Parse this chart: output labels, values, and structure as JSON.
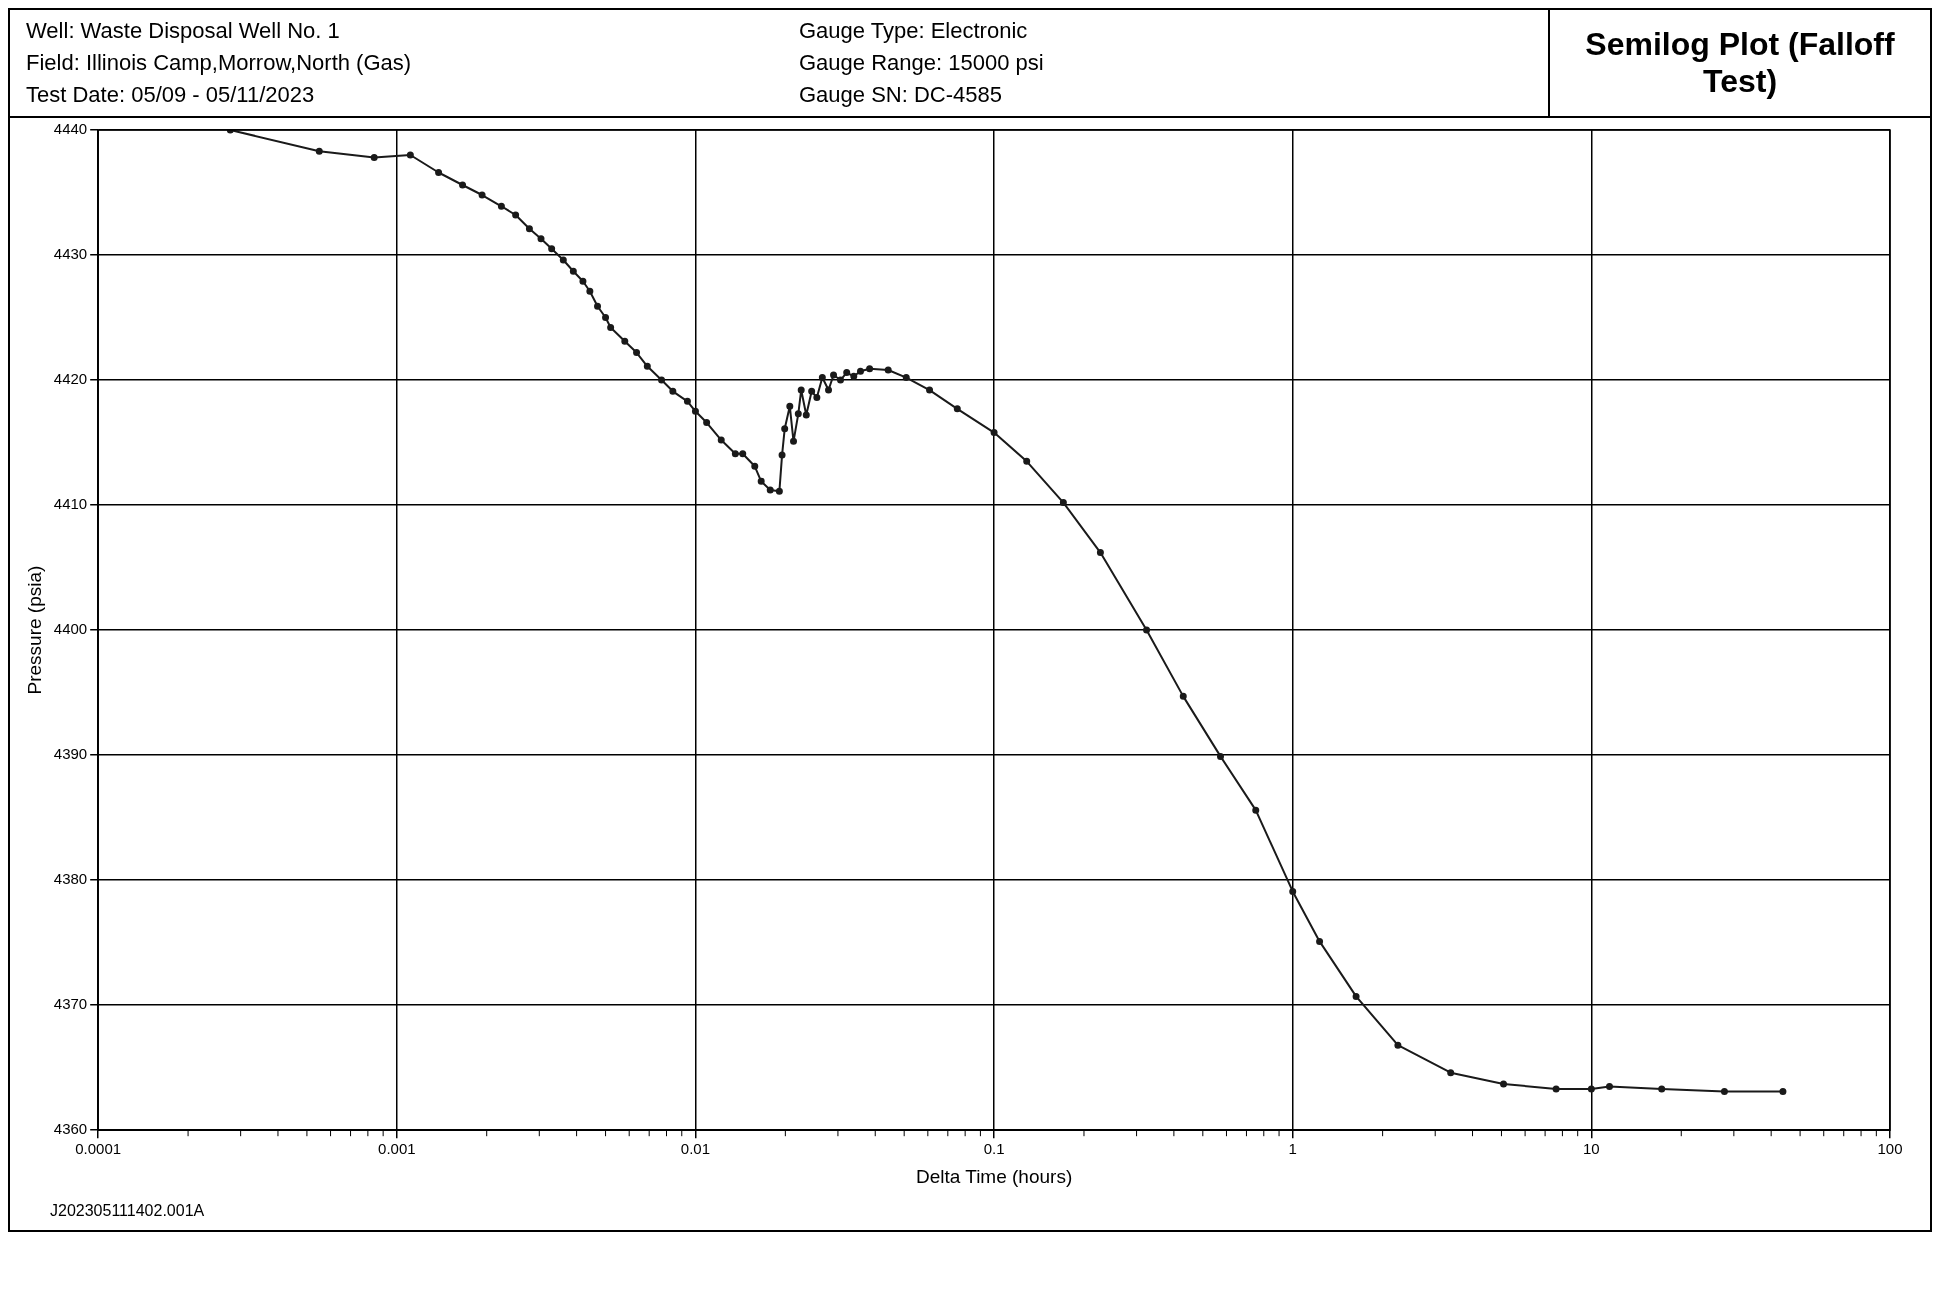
{
  "chart_data": {
    "type": "line",
    "title": "Semilog Plot (Falloff Test)",
    "xlabel": "Delta Time (hours)",
    "ylabel": "Pressure (psia)",
    "annotations": [
      "Well: Waste Disposal Well No. 1",
      "Field: Illinois Camp,Morrow,North (Gas)",
      "Test Date: 05/09 - 05/11/2023",
      "Gauge Type: Electronic",
      "Gauge Range: 15000 psi",
      "Gauge SN: DC-4585",
      "J202305111402.001A"
    ],
    "log": "x",
    "grid": true,
    "legend": false,
    "marker": "circle",
    "line_style": "solid",
    "xlim": [
      0.0001,
      100
    ],
    "ylim": [
      4360,
      4440
    ],
    "xticks": [
      0.0001,
      {
        "value": 0.0002,
        "label": null
      },
      {
        "value": 0.0003,
        "label": null
      },
      {
        "value": 0.0004,
        "label": null
      },
      {
        "value": 0.0005,
        "label": null
      },
      {
        "value": 0.0006,
        "label": null
      },
      {
        "value": 0.0007,
        "label": null
      },
      {
        "value": 0.0008,
        "label": null
      },
      {
        "value": 0.0009,
        "label": null
      },
      0.001,
      {
        "value": 0.002,
        "label": null
      },
      {
        "value": 0.003,
        "label": null
      },
      {
        "value": 0.004,
        "label": null
      },
      {
        "value": 0.005,
        "label": null
      },
      {
        "value": 0.006,
        "label": null
      },
      {
        "value": 0.007,
        "label": null
      },
      {
        "value": 0.008,
        "label": null
      },
      {
        "value": 0.009,
        "label": null
      },
      0.01,
      {
        "value": 0.02,
        "label": null
      },
      {
        "value": 0.03,
        "label": null
      },
      {
        "value": 0.04,
        "label": null
      },
      {
        "value": 0.05,
        "label": null
      },
      {
        "value": 0.06,
        "label": null
      },
      {
        "value": 0.07,
        "label": null
      },
      {
        "value": 0.08,
        "label": null
      },
      {
        "value": 0.09,
        "label": null
      },
      0.1,
      {
        "value": 0.2,
        "label": null
      },
      {
        "value": 0.3,
        "label": null
      },
      {
        "value": 0.4,
        "label": null
      },
      {
        "value": 0.5,
        "label": null
      },
      {
        "value": 0.6,
        "label": null
      },
      {
        "value": 0.7,
        "label": null
      },
      {
        "value": 0.8,
        "label": null
      },
      {
        "value": 0.9,
        "label": null
      },
      1,
      {
        "value": 2,
        "label": null
      },
      {
        "value": 3,
        "label": null
      },
      {
        "value": 4,
        "label": null
      },
      {
        "value": 5,
        "label": null
      },
      {
        "value": 6,
        "label": null
      },
      {
        "value": 7,
        "label": null
      },
      {
        "value": 8,
        "label": null
      },
      {
        "value": 9,
        "label": null
      },
      10,
      {
        "value": 20,
        "label": null
      },
      {
        "value": 30,
        "label": null
      },
      {
        "value": 40,
        "label": null
      },
      {
        "value": 50,
        "label": null
      },
      {
        "value": 60,
        "label": null
      },
      {
        "value": 70,
        "label": null
      },
      {
        "value": 80,
        "label": null
      },
      {
        "value": 90,
        "label": null
      },
      100
    ],
    "yticks": [
      4360,
      4370,
      4380,
      4390,
      4400,
      4410,
      4420,
      4430,
      4440
    ],
    "series": [
      {
        "color": "#1a1a1a",
        "x": [
          0.000277,
          0.00055,
          0.00084,
          0.00111,
          0.00138,
          0.00166,
          0.00193,
          0.00224,
          0.0025,
          0.00278,
          0.00304,
          0.0033,
          0.00361,
          0.0039,
          0.0042,
          0.00443,
          0.0047,
          0.005,
          0.0052,
          0.0058,
          0.00635,
          0.0069,
          0.0077,
          0.0084,
          0.0094,
          0.01,
          0.0109,
          0.0122,
          0.0136,
          0.0144,
          0.0158,
          0.0166,
          0.0178,
          0.0191,
          0.0195,
          0.0199,
          0.0207,
          0.0213,
          0.0221,
          0.0226,
          0.0235,
          0.0245,
          0.0255,
          0.0266,
          0.0279,
          0.029,
          0.0306,
          0.0321,
          0.0339,
          0.0357,
          0.0383,
          0.0442,
          0.0508,
          0.0608,
          0.0753,
          0.1,
          0.1286,
          0.1706,
          0.227,
          0.324,
          0.43,
          0.573,
          0.752,
          1,
          1.23,
          1.63,
          2.25,
          3.38,
          5.08,
          7.62,
          10,
          11.5,
          17.2,
          27.9,
          43.8
        ],
        "values": [
          4440.0,
          4438.3,
          4437.8,
          4438.0,
          4436.6,
          4435.6,
          4434.8,
          4433.9,
          4433.2,
          4432.1,
          4431.3,
          4430.5,
          4429.6,
          4428.7,
          4427.9,
          4427.1,
          4425.9,
          4425.0,
          4424.2,
          4423.1,
          4422.2,
          4421.1,
          4420.0,
          4419.1,
          4418.3,
          4417.5,
          4416.6,
          4415.2,
          4414.1,
          4414.1,
          4413.1,
          4411.9,
          4411.2,
          4411.1,
          4414.0,
          4416.1,
          4417.9,
          4415.1,
          4417.3,
          4419.2,
          4417.2,
          4419.1,
          4418.6,
          4420.2,
          4419.2,
          4420.4,
          4420.0,
          4420.6,
          4420.3,
          4420.7,
          4420.9,
          4420.8,
          4420.2,
          4419.2,
          4417.7,
          4415.8,
          4413.5,
          4410.2,
          4406.2,
          4400.0,
          4394.7,
          4389.9,
          4385.6,
          4379.1,
          4375.1,
          4370.7,
          4366.8,
          4364.6,
          4363.7,
          4363.3,
          4363.3,
          4363.5,
          4363.3,
          4363.1,
          4363.1
        ]
      }
    ]
  }
}
